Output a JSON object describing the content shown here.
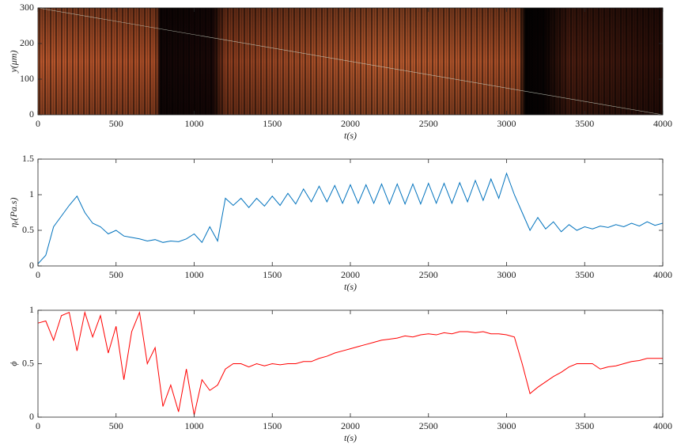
{
  "chart_data": [
    {
      "type": "image",
      "xlabel": "t(s)",
      "ylabel": "y(μm)",
      "xlim": [
        0,
        4000
      ],
      "xticks": [
        0,
        500,
        1000,
        1500,
        2000,
        2500,
        3000,
        3500,
        4000
      ],
      "ylim": [
        0,
        300
      ],
      "yticks": [
        0,
        100,
        200,
        300
      ]
    },
    {
      "type": "line",
      "xlabel": "t(s)",
      "ylabel": "ηₑ(Pa.s)",
      "xlim": [
        0,
        4000
      ],
      "xticks": [
        0,
        500,
        1000,
        1500,
        2000,
        2500,
        3000,
        3500,
        4000
      ],
      "ylim": [
        0,
        1.5
      ],
      "yticks": [
        0,
        0.5,
        1,
        1.5
      ],
      "x": [
        0,
        50,
        100,
        150,
        200,
        250,
        300,
        350,
        400,
        450,
        500,
        550,
        600,
        650,
        700,
        750,
        800,
        850,
        900,
        950,
        1000,
        1050,
        1100,
        1150,
        1200,
        1250,
        1300,
        1350,
        1400,
        1450,
        1500,
        1550,
        1600,
        1650,
        1700,
        1750,
        1800,
        1850,
        1900,
        1950,
        2000,
        2050,
        2100,
        2150,
        2200,
        2250,
        2300,
        2350,
        2400,
        2450,
        2500,
        2550,
        2600,
        2650,
        2700,
        2750,
        2800,
        2850,
        2900,
        2950,
        3000,
        3050,
        3100,
        3150,
        3200,
        3250,
        3300,
        3350,
        3400,
        3450,
        3500,
        3550,
        3600,
        3650,
        3700,
        3750,
        3800,
        3850,
        3900,
        3950,
        4000
      ],
      "series": [
        {
          "color": "#0072bd",
          "values": [
            0.03,
            0.15,
            0.55,
            0.7,
            0.85,
            0.98,
            0.75,
            0.6,
            0.55,
            0.45,
            0.5,
            0.42,
            0.4,
            0.38,
            0.35,
            0.37,
            0.33,
            0.35,
            0.34,
            0.38,
            0.45,
            0.33,
            0.55,
            0.35,
            0.95,
            0.85,
            0.95,
            0.82,
            0.95,
            0.84,
            0.98,
            0.85,
            1.02,
            0.87,
            1.08,
            0.9,
            1.12,
            0.9,
            1.13,
            0.88,
            1.14,
            0.88,
            1.14,
            0.88,
            1.15,
            0.87,
            1.15,
            0.87,
            1.15,
            0.87,
            1.16,
            0.88,
            1.16,
            0.88,
            1.17,
            0.9,
            1.2,
            0.92,
            1.22,
            0.95,
            1.3,
            1.0,
            0.75,
            0.5,
            0.68,
            0.52,
            0.62,
            0.48,
            0.58,
            0.5,
            0.55,
            0.52,
            0.56,
            0.54,
            0.58,
            0.55,
            0.6,
            0.56,
            0.62,
            0.57,
            0.6
          ]
        }
      ]
    },
    {
      "type": "line",
      "xlabel": "t(s)",
      "ylabel": "ϕ",
      "xlim": [
        0,
        4000
      ],
      "xticks": [
        0,
        500,
        1000,
        1500,
        2000,
        2500,
        3000,
        3500,
        4000
      ],
      "ylim": [
        0,
        1
      ],
      "yticks": [
        0,
        0.5,
        1
      ],
      "x": [
        0,
        50,
        100,
        150,
        200,
        250,
        300,
        350,
        400,
        450,
        500,
        550,
        600,
        650,
        700,
        750,
        800,
        850,
        900,
        950,
        1000,
        1050,
        1100,
        1150,
        1200,
        1250,
        1300,
        1350,
        1400,
        1450,
        1500,
        1550,
        1600,
        1650,
        1700,
        1750,
        1800,
        1850,
        1900,
        1950,
        2000,
        2050,
        2100,
        2150,
        2200,
        2250,
        2300,
        2350,
        2400,
        2450,
        2500,
        2550,
        2600,
        2650,
        2700,
        2750,
        2800,
        2850,
        2900,
        2950,
        3000,
        3050,
        3100,
        3150,
        3200,
        3250,
        3300,
        3350,
        3400,
        3450,
        3500,
        3550,
        3600,
        3650,
        3700,
        3750,
        3800,
        3850,
        3900,
        3950,
        4000
      ],
      "series": [
        {
          "color": "#ff0000",
          "values": [
            0.88,
            0.9,
            0.72,
            0.95,
            0.98,
            0.62,
            0.98,
            0.75,
            0.95,
            0.6,
            0.85,
            0.35,
            0.8,
            0.98,
            0.5,
            0.65,
            0.1,
            0.3,
            0.05,
            0.45,
            0.02,
            0.35,
            0.25,
            0.3,
            0.45,
            0.5,
            0.5,
            0.47,
            0.5,
            0.48,
            0.5,
            0.49,
            0.5,
            0.5,
            0.52,
            0.52,
            0.55,
            0.57,
            0.6,
            0.62,
            0.64,
            0.66,
            0.68,
            0.7,
            0.72,
            0.73,
            0.74,
            0.76,
            0.75,
            0.77,
            0.78,
            0.77,
            0.79,
            0.78,
            0.8,
            0.8,
            0.79,
            0.8,
            0.78,
            0.78,
            0.77,
            0.75,
            0.5,
            0.22,
            0.28,
            0.33,
            0.38,
            0.42,
            0.47,
            0.5,
            0.5,
            0.5,
            0.45,
            0.47,
            0.48,
            0.5,
            0.52,
            0.53,
            0.55,
            0.55,
            0.55
          ]
        }
      ]
    }
  ]
}
